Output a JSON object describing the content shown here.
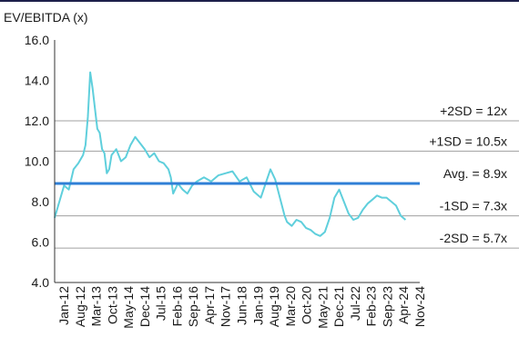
{
  "chart_data": {
    "type": "line",
    "ylabel": "EV/EBITDA (x)",
    "ylim": [
      4.0,
      16.0
    ],
    "yticks": [
      "4.0",
      "6.0",
      "8.0",
      "10.0",
      "12.0",
      "14.0",
      "16.0"
    ],
    "xlim": [
      "2012-01",
      "2024-11"
    ],
    "xticks": [
      "Jan-12",
      "Aug-12",
      "Mar-13",
      "Oct-13",
      "May-14",
      "Dec-14",
      "Jul-15",
      "Feb-16",
      "Sep-16",
      "Apr-17",
      "Nov-17",
      "Jun-18",
      "Jan-19",
      "Aug-19",
      "Mar-20",
      "Oct-20",
      "May-21",
      "Dec-21",
      "Jul-22",
      "Feb-23",
      "Sep-23",
      "Apr-24",
      "Nov-24"
    ],
    "grid": "horizontal",
    "reference_lines": [
      {
        "label": "+2SD = 12x",
        "value": 12.0,
        "style": "thin-gray"
      },
      {
        "label": "+1SD = 10.5x",
        "value": 10.5,
        "style": "thin-gray"
      },
      {
        "label": "Avg. = 8.9x",
        "value": 8.9,
        "style": "thick-blue"
      },
      {
        "label": "-1SD = 7.3x",
        "value": 7.3,
        "style": "thin-gray"
      },
      {
        "label": "-2SD = 5.7x",
        "value": 5.7,
        "style": "thin-gray"
      }
    ],
    "series": [
      {
        "x": [
          "2012-01",
          "2012-03",
          "2012-05",
          "2012-07",
          "2012-09",
          "2012-11",
          "2013-01",
          "2013-02",
          "2013-03",
          "2013-04",
          "2013-05",
          "2013-06",
          "2013-07",
          "2013-08",
          "2013-09",
          "2013-10",
          "2013-11",
          "2013-12",
          "2014-01",
          "2014-03",
          "2014-05",
          "2014-07",
          "2014-09",
          "2014-11",
          "2015-01",
          "2015-03",
          "2015-05",
          "2015-07",
          "2015-09",
          "2015-11",
          "2016-01",
          "2016-02",
          "2016-03",
          "2016-05",
          "2016-07",
          "2016-09",
          "2016-11",
          "2017-01",
          "2017-04",
          "2017-07",
          "2017-10",
          "2018-01",
          "2018-04",
          "2018-07",
          "2018-10",
          "2019-01",
          "2019-04",
          "2019-06",
          "2019-08",
          "2019-10",
          "2019-12",
          "2020-02",
          "2020-03",
          "2020-05",
          "2020-07",
          "2020-09",
          "2020-11",
          "2021-01",
          "2021-03",
          "2021-05",
          "2021-07",
          "2021-09",
          "2021-11",
          "2022-01",
          "2022-03",
          "2022-05",
          "2022-07",
          "2022-09",
          "2022-11",
          "2023-01",
          "2023-03",
          "2023-05",
          "2023-07",
          "2023-09",
          "2023-11",
          "2024-01",
          "2024-03",
          "2024-05"
        ],
        "values": [
          7.2,
          8.0,
          8.8,
          8.6,
          9.6,
          9.9,
          10.3,
          10.8,
          12.2,
          14.4,
          13.6,
          12.6,
          11.6,
          11.4,
          10.6,
          10.4,
          9.4,
          9.6,
          10.3,
          10.6,
          10.0,
          10.2,
          10.8,
          11.2,
          10.9,
          10.6,
          10.2,
          10.4,
          10.0,
          9.9,
          9.6,
          9.2,
          8.4,
          8.9,
          8.6,
          8.4,
          8.8,
          9.0,
          9.2,
          9.0,
          9.3,
          9.4,
          9.5,
          9.0,
          9.2,
          8.5,
          8.2,
          8.9,
          9.6,
          9.1,
          8.2,
          7.3,
          7.0,
          6.8,
          7.1,
          7.0,
          6.7,
          6.6,
          6.4,
          6.3,
          6.5,
          7.2,
          8.2,
          8.6,
          8.0,
          7.4,
          7.1,
          7.2,
          7.6,
          7.9,
          8.1,
          8.3,
          8.2,
          8.2,
          8.0,
          7.8,
          7.3,
          7.1
        ]
      }
    ],
    "line_color": "#5fcfdc",
    "avg_color": "#2f7fd6",
    "ref_color": "#a0a0a0",
    "top_bar_color": "#1c1f4a"
  }
}
